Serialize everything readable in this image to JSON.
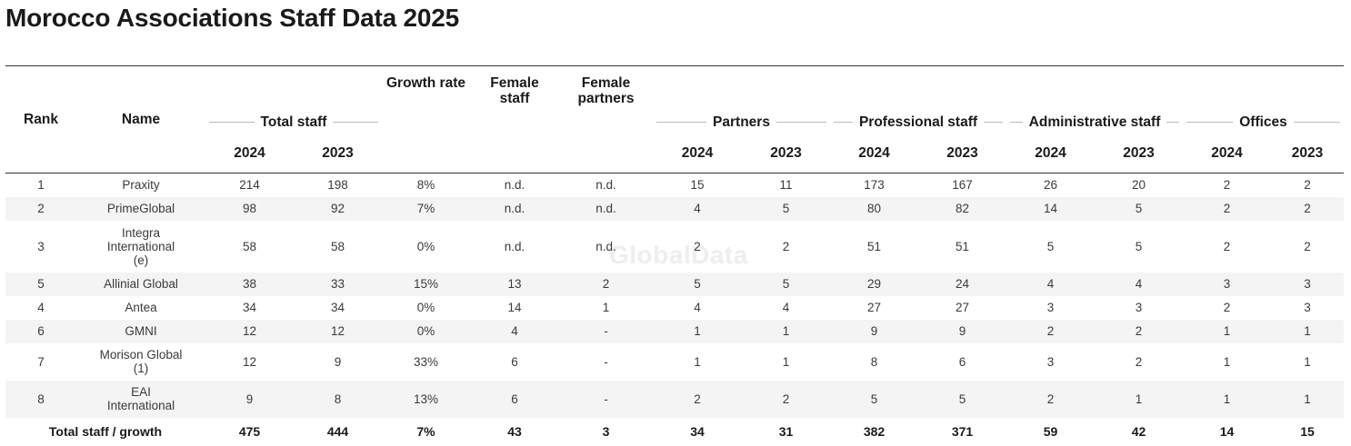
{
  "title": "Morocco Associations Staff Data 2025",
  "watermark": "GlobalData",
  "headers": {
    "rank": "Rank",
    "name": "Name",
    "total_staff": "Total staff",
    "growth_rate": "Growth rate",
    "female_staff": "Female staff",
    "female_partners": "Female partners",
    "partners": "Partners",
    "professional_staff": "Professional staff",
    "administrative_staff": "Administrative staff",
    "offices": "Offices",
    "year_a": "2024",
    "year_b": "2023"
  },
  "rows": [
    {
      "rank": "1",
      "name": "Praxity",
      "ts24": "214",
      "ts23": "198",
      "growth": "8%",
      "fstaff": "n.d.",
      "fpart": "n.d.",
      "p24": "15",
      "p23": "11",
      "ps24": "173",
      "ps23": "167",
      "as24": "26",
      "as23": "20",
      "o24": "2",
      "o23": "2"
    },
    {
      "rank": "2",
      "name": "PrimeGlobal",
      "ts24": "98",
      "ts23": "92",
      "growth": "7%",
      "fstaff": "n.d.",
      "fpart": "n.d.",
      "p24": "4",
      "p23": "5",
      "ps24": "80",
      "ps23": "82",
      "as24": "14",
      "as23": "5",
      "o24": "2",
      "o23": "2"
    },
    {
      "rank": "3",
      "name": "Integra International (e)",
      "ts24": "58",
      "ts23": "58",
      "growth": "0%",
      "fstaff": "n.d.",
      "fpart": "n.d.",
      "p24": "2",
      "p23": "2",
      "ps24": "51",
      "ps23": "51",
      "as24": "5",
      "as23": "5",
      "o24": "2",
      "o23": "2"
    },
    {
      "rank": "5",
      "name": "Allinial Global",
      "ts24": "38",
      "ts23": "33",
      "growth": "15%",
      "fstaff": "13",
      "fpart": "2",
      "p24": "5",
      "p23": "5",
      "ps24": "29",
      "ps23": "24",
      "as24": "4",
      "as23": "4",
      "o24": "3",
      "o23": "3"
    },
    {
      "rank": "4",
      "name": "Antea",
      "ts24": "34",
      "ts23": "34",
      "growth": "0%",
      "fstaff": "14",
      "fpart": "1",
      "p24": "4",
      "p23": "4",
      "ps24": "27",
      "ps23": "27",
      "as24": "3",
      "as23": "3",
      "o24": "2",
      "o23": "3"
    },
    {
      "rank": "6",
      "name": "GMNI",
      "ts24": "12",
      "ts23": "12",
      "growth": "0%",
      "fstaff": "4",
      "fpart": "-",
      "p24": "1",
      "p23": "1",
      "ps24": "9",
      "ps23": "9",
      "as24": "2",
      "as23": "2",
      "o24": "1",
      "o23": "1"
    },
    {
      "rank": "7",
      "name": "Morison Global (1)",
      "ts24": "12",
      "ts23": "9",
      "growth": "33%",
      "fstaff": "6",
      "fpart": "-",
      "p24": "1",
      "p23": "1",
      "ps24": "8",
      "ps23": "6",
      "as24": "3",
      "as23": "2",
      "o24": "1",
      "o23": "1"
    },
    {
      "rank": "8",
      "name": "EAI International",
      "ts24": "9",
      "ts23": "8",
      "growth": "13%",
      "fstaff": "6",
      "fpart": "-",
      "p24": "2",
      "p23": "2",
      "ps24": "5",
      "ps23": "5",
      "as24": "2",
      "as23": "1",
      "o24": "1",
      "o23": "1"
    }
  ],
  "total": {
    "label": "Total staff / growth",
    "ts24": "475",
    "ts23": "444",
    "growth": "7%",
    "fstaff": "43",
    "fpart": "3",
    "p24": "34",
    "p23": "31",
    "ps24": "382",
    "ps23": "371",
    "as24": "59",
    "as23": "42",
    "o24": "14",
    "o23": "15"
  }
}
